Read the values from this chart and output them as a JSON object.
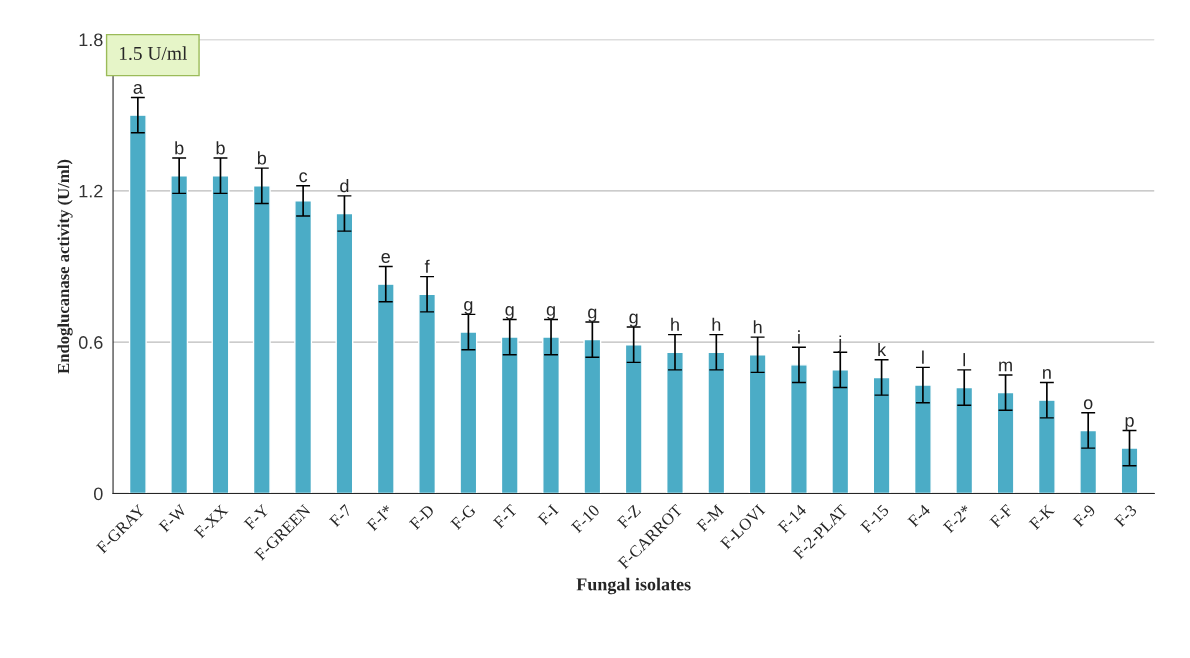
{
  "chart_data": {
    "type": "bar",
    "xlabel": "Fungal isolates",
    "ylabel": "Endoglucanase activity (U/ml)",
    "categories": [
      "F-GRAY",
      "F-W",
      "F-XX",
      "F-Y",
      "F-GREEN",
      "F-7",
      "F-I*",
      "F-D",
      "F-G",
      "F-T",
      "F-I",
      "F-10",
      "F-Z",
      "F-CARROT",
      "F-M",
      "F-LOVI",
      "F-14",
      "F-2-PLAT",
      "F-15",
      "F-4",
      "F-2*",
      "F-F",
      "F-K",
      "F-9",
      "F-3"
    ],
    "values": [
      1.5,
      1.26,
      1.26,
      1.22,
      1.16,
      1.11,
      0.83,
      0.79,
      0.64,
      0.62,
      0.62,
      0.61,
      0.59,
      0.56,
      0.56,
      0.55,
      0.51,
      0.49,
      0.46,
      0.43,
      0.42,
      0.4,
      0.37,
      0.25,
      0.18
    ],
    "errors": [
      0.07,
      0.07,
      0.07,
      0.07,
      0.06,
      0.07,
      0.07,
      0.07,
      0.07,
      0.07,
      0.07,
      0.07,
      0.07,
      0.07,
      0.07,
      0.07,
      0.07,
      0.07,
      0.07,
      0.07,
      0.07,
      0.07,
      0.07,
      0.07,
      0.07
    ],
    "color": "#4bacc6",
    "ylim": [
      0,
      1.8
    ],
    "yticks": [
      0,
      0.6,
      1.2,
      1.8
    ],
    "grid": "y",
    "annotations": [
      "1.5 U/ml",
      {
        "text": "a",
        "x": "F-GRAY",
        "y": 1.57
      },
      {
        "text": "b",
        "x": "F-W",
        "y": 1.33
      },
      {
        "text": "b",
        "x": "F-XX",
        "y": 1.33
      },
      {
        "text": "b",
        "x": "F-Y",
        "y": 1.29
      },
      {
        "text": "c",
        "x": "F-GREEN",
        "y": 1.22
      },
      {
        "text": "d",
        "x": "F-7",
        "y": 1.18
      },
      {
        "text": "e",
        "x": "F-I*",
        "y": 0.9
      },
      {
        "text": "f",
        "x": "F-D",
        "y": 0.86
      },
      {
        "text": "g",
        "x": "F-G",
        "y": 0.71
      },
      {
        "text": "g",
        "x": "F-T",
        "y": 0.69
      },
      {
        "text": "g",
        "x": "F-I",
        "y": 0.69
      },
      {
        "text": "g",
        "x": "F-10",
        "y": 0.68
      },
      {
        "text": "g",
        "x": "F-Z",
        "y": 0.66
      },
      {
        "text": "h",
        "x": "F-CARROT",
        "y": 0.63
      },
      {
        "text": "h",
        "x": "F-M",
        "y": 0.63
      },
      {
        "text": "h",
        "x": "F-LOVI",
        "y": 0.62
      },
      {
        "text": "i",
        "x": "F-14",
        "y": 0.58
      },
      {
        "text": "j",
        "x": "F-2-PLAT",
        "y": 0.56
      },
      {
        "text": "k",
        "x": "F-15",
        "y": 0.53
      },
      {
        "text": "l",
        "x": "F-4",
        "y": 0.5
      },
      {
        "text": "l",
        "x": "F-2*",
        "y": 0.49
      },
      {
        "text": "m",
        "x": "F-F",
        "y": 0.47
      },
      {
        "text": "n",
        "x": "F-K",
        "y": 0.44
      },
      {
        "text": "o",
        "x": "F-9",
        "y": 0.32
      },
      {
        "text": "p",
        "x": "F-3",
        "y": 0.25
      }
    ]
  }
}
